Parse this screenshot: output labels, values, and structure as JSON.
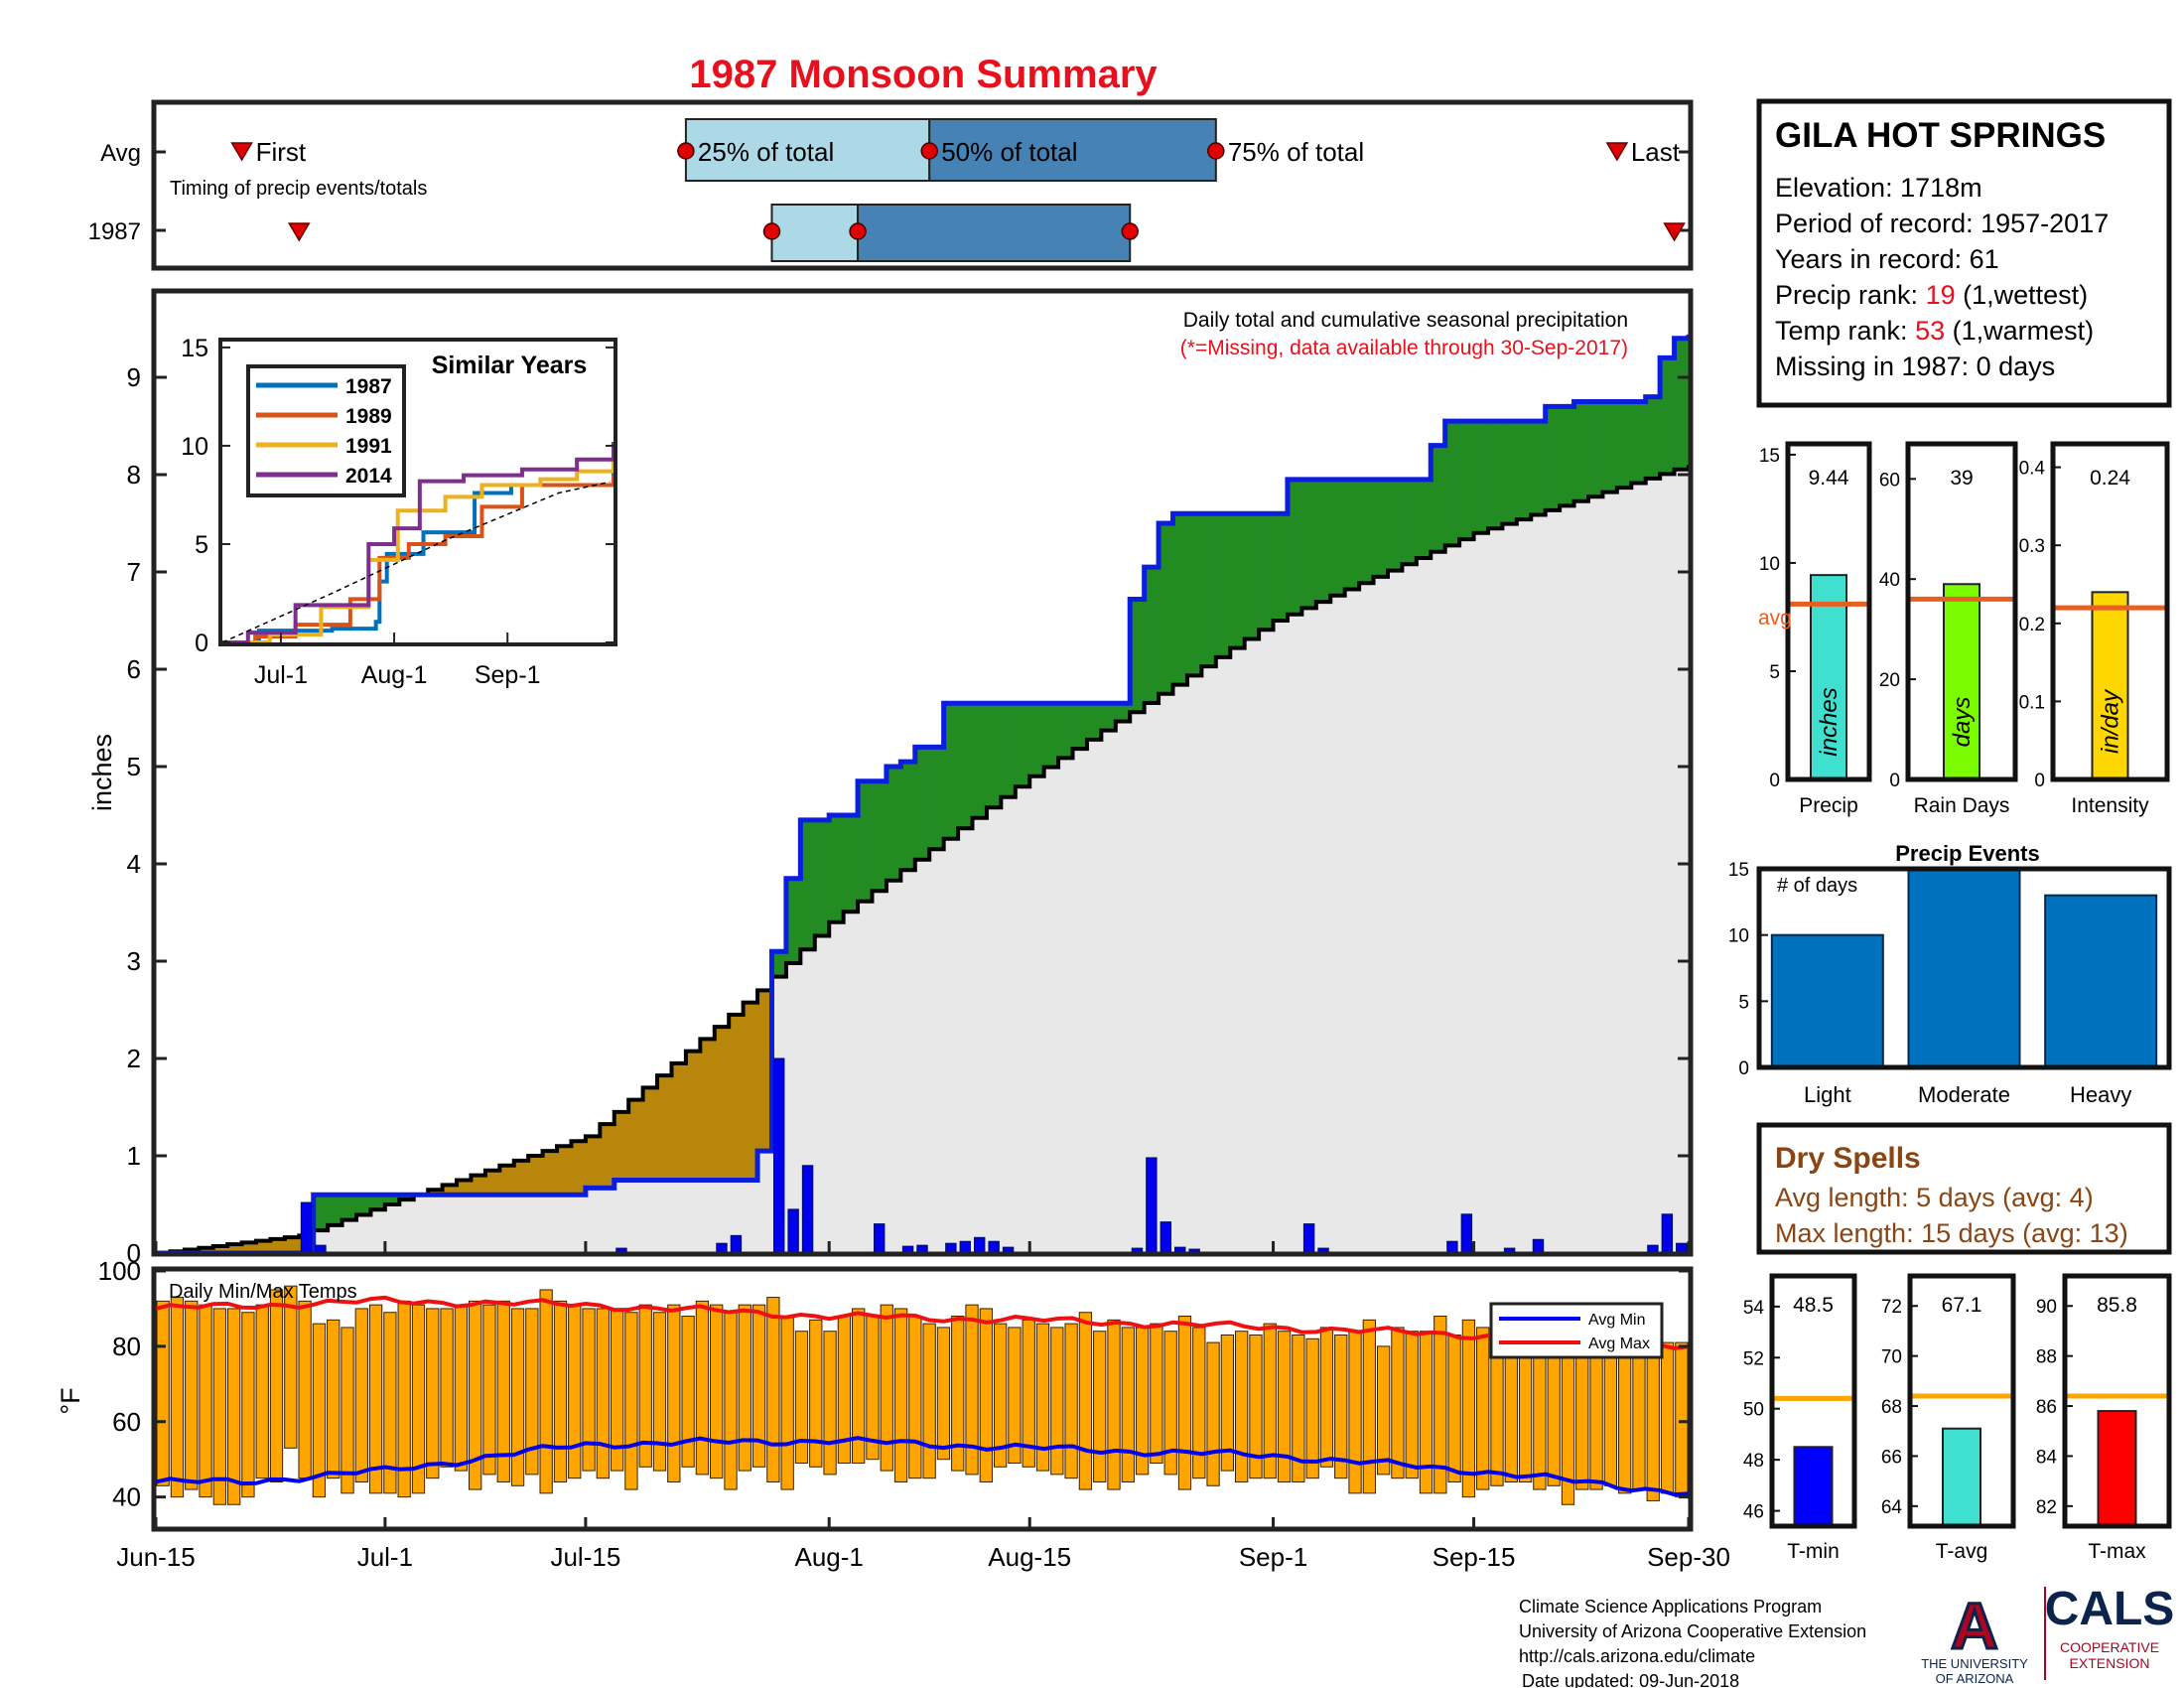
{
  "title": "1987 Monsoon Summary",
  "timing": {
    "row_avg": "Avg",
    "row_year": "1987",
    "first_label": "First",
    "last_label": "Last",
    "caption": "Timing of precip events/totals",
    "q25_label": "25% of total",
    "q50_label": "50% of total",
    "q75_label": "75% of total",
    "avg": {
      "first": "2017-06-21",
      "q25": "2017-07-22",
      "q50": "2017-08-08",
      "q75": "2017-08-28",
      "last": "2017-09-25"
    },
    "year": {
      "first": "2017-06-25",
      "q25": "2017-07-28",
      "q50": "2017-08-03",
      "q75": "2017-08-22",
      "last": "2017-09-29"
    }
  },
  "main": {
    "ylabel": "inches",
    "caption1": "Daily total and cumulative seasonal precipitation",
    "caption2": "(*=Missing, data available through 30-Sep-2017)",
    "x_ticks": [
      "Jun-15",
      "Jul-1",
      "Jul-15",
      "Aug-1",
      "Aug-15",
      "Sep-1",
      "Sep-15",
      "Sep-30"
    ],
    "y_ticks": [
      "0",
      "1",
      "2",
      "3",
      "4",
      "5",
      "6",
      "7",
      "8",
      "9"
    ]
  },
  "inset": {
    "title": "Similar Years",
    "x_ticks": [
      "Jul-1",
      "Aug-1",
      "Sep-1"
    ],
    "y_ticks": [
      "0",
      "5",
      "10",
      "15"
    ]
  },
  "temps": {
    "label": "Daily Min/Max Temps",
    "ylabel": "°F",
    "y_ticks": [
      "40",
      "60",
      "80",
      "100"
    ],
    "legend_min": "Avg Min",
    "legend_max": "Avg Max"
  },
  "station": {
    "name": "GILA HOT SPRINGS",
    "elevation": "Elevation: 1718m",
    "period": "Period of record: 1957-2017",
    "years": "Years in record: 61",
    "precip_rank_label": "Precip rank: ",
    "precip_rank_value": "19",
    "precip_rank_note": " (1,wettest)",
    "temp_rank_label": "Temp rank: ",
    "temp_rank_value": "53",
    "temp_rank_note": " (1,warmest)",
    "missing": "Missing in 1987: 0 days"
  },
  "summary_bars": {
    "avg_label": "avg",
    "precip": {
      "value_text": "9.44",
      "unit": "inches",
      "label": "Precip",
      "ticks": [
        "0",
        "5",
        "10",
        "15"
      ]
    },
    "rain_days": {
      "value_text": "39",
      "unit": "days",
      "label": "Rain Days",
      "ticks": [
        "0",
        "20",
        "40",
        "60"
      ]
    },
    "intensity": {
      "value_text": "0.24",
      "unit": "in/day",
      "label": "Intensity",
      "ticks": [
        "0",
        "0.1",
        "0.2",
        "0.3",
        "0.4"
      ]
    }
  },
  "events": {
    "title": "Precip Events",
    "ylabel": "# of days",
    "categories": [
      "Light",
      "Moderate",
      "Heavy"
    ],
    "ticks": [
      "0",
      "5",
      "10",
      "15"
    ]
  },
  "dry_spells": {
    "title": "Dry Spells",
    "avg": "Avg length: 5 days (avg: 4)",
    "max": "Max length: 15 days (avg: 13)"
  },
  "temp_bars": {
    "tmin": {
      "value_text": "48.5",
      "label": "T-min",
      "ticks": [
        "46",
        "48",
        "50",
        "52",
        "54"
      ]
    },
    "tavg": {
      "value_text": "67.1",
      "label": "T-avg",
      "ticks": [
        "64",
        "66",
        "68",
        "70",
        "72"
      ]
    },
    "tmax": {
      "value_text": "85.8",
      "label": "T-max",
      "ticks": [
        "82",
        "84",
        "86",
        "88",
        "90"
      ]
    }
  },
  "footer": {
    "line1": "Climate Science Applications Program",
    "line2": "University of Arizona Cooperative Extension",
    "line3": "http://cals.arizona.edu/climate",
    "line4": "Date updated: 09-Jun-2018"
  },
  "logos": {
    "ua_letter": "A",
    "ua_line1": "THE UNIVERSITY",
    "ua_line2": "OF ARIZONA",
    "cals": "CALS",
    "cals_line1": "COOPERATIVE",
    "cals_line2": "EXTENSION"
  },
  "colors": {
    "title": "#e8101c",
    "wet_fill": "#228b22",
    "dry_fill": "#b8860b",
    "avg_fill": "#e8e8e8",
    "daily_bar": "#0000ee",
    "q_light": "#add8e6",
    "q_dark": "#4682b4",
    "temp_bar": "#ffa500",
    "avg_line": "#e56022",
    "events_bar": "#0072bd",
    "spell_text": "#8b4513"
  },
  "chart_data": [
    {
      "name": "Cumulative seasonal precipitation",
      "type": "line",
      "units": "inches",
      "x_range": [
        "2017-06-15",
        "2017-09-30"
      ],
      "ylim": [
        0,
        9.8
      ],
      "series": [
        {
          "name": "1987",
          "role": "observed cumulative",
          "x": [
            "06-15",
            "06-25",
            "06-26",
            "07-15",
            "07-17",
            "07-27",
            "07-28",
            "07-29",
            "07-30",
            "08-01",
            "08-03",
            "08-05",
            "08-06",
            "08-07",
            "08-09",
            "08-22",
            "08-23",
            "08-24",
            "08-25",
            "09-02",
            "09-12",
            "09-13",
            "09-20",
            "09-22",
            "09-27",
            "09-28",
            "09-29",
            "09-30"
          ],
          "y": [
            0.0,
            0.0,
            0.6,
            0.67,
            0.75,
            1.05,
            3.1,
            3.85,
            4.45,
            4.5,
            4.85,
            5.0,
            5.05,
            5.2,
            5.65,
            6.72,
            7.05,
            7.5,
            7.6,
            7.95,
            8.3,
            8.55,
            8.7,
            8.75,
            8.8,
            9.2,
            9.4,
            9.44
          ]
        },
        {
          "name": "Avg",
          "role": "average cumulative",
          "x": [
            "06-15",
            "06-25",
            "07-01",
            "07-15",
            "07-27",
            "08-01",
            "08-15",
            "09-01",
            "09-15",
            "09-30"
          ],
          "y": [
            0.0,
            0.18,
            0.5,
            1.2,
            2.7,
            3.4,
            4.9,
            6.5,
            7.4,
            8.1
          ]
        }
      ]
    },
    {
      "name": "Daily precipitation",
      "type": "bar",
      "units": "inches",
      "x": [
        "06-25",
        "06-26",
        "07-17",
        "07-24",
        "07-25",
        "07-28",
        "07-29",
        "07-30",
        "08-04",
        "08-06",
        "08-07",
        "08-09",
        "08-10",
        "08-11",
        "08-12",
        "08-13",
        "08-22",
        "08-23",
        "08-24",
        "08-25",
        "08-26",
        "09-03",
        "09-04",
        "09-13",
        "09-14",
        "09-17",
        "09-19",
        "09-27",
        "09-28",
        "09-29"
      ],
      "values": [
        0.52,
        0.08,
        0.05,
        0.1,
        0.18,
        2.0,
        0.45,
        0.9,
        0.3,
        0.07,
        0.08,
        0.1,
        0.12,
        0.16,
        0.12,
        0.06,
        0.05,
        0.98,
        0.32,
        0.06,
        0.04,
        0.3,
        0.05,
        0.12,
        0.4,
        0.05,
        0.14,
        0.08,
        0.4,
        0.1
      ]
    },
    {
      "name": "Similar Years",
      "type": "line",
      "units": "inches",
      "ylim": [
        0,
        15
      ],
      "x_ticks": [
        "Jul-1",
        "Aug-1",
        "Sep-1"
      ],
      "series": [
        {
          "name": "1987",
          "x": [
            "06-15",
            "06-25",
            "07-15",
            "07-27",
            "07-28",
            "07-30",
            "08-09",
            "08-23",
            "09-02",
            "09-30"
          ],
          "y": [
            0,
            0.6,
            0.7,
            1.05,
            3.1,
            4.5,
            5.6,
            7.6,
            8.0,
            9.4
          ]
        },
        {
          "name": "1989",
          "x": [
            "06-15",
            "06-24",
            "07-05",
            "07-20",
            "07-28",
            "08-05",
            "08-15",
            "08-25",
            "09-05",
            "09-30"
          ],
          "y": [
            0,
            0.3,
            0.9,
            2.2,
            4.3,
            5.0,
            5.4,
            6.9,
            8.0,
            8.5
          ]
        },
        {
          "name": "1991",
          "x": [
            "06-15",
            "06-28",
            "07-12",
            "07-25",
            "08-02",
            "08-15",
            "08-25",
            "09-10",
            "09-20",
            "09-30"
          ],
          "y": [
            0,
            0.4,
            1.8,
            4.2,
            6.7,
            7.4,
            8.0,
            8.3,
            8.7,
            9.5
          ]
        },
        {
          "name": "2014",
          "x": [
            "06-15",
            "06-22",
            "07-05",
            "07-25",
            "08-01",
            "08-08",
            "08-20",
            "09-05",
            "09-20",
            "09-30"
          ],
          "y": [
            0,
            0.5,
            1.9,
            5.0,
            5.8,
            8.2,
            8.5,
            8.8,
            9.3,
            10.2
          ]
        },
        {
          "name": "avg",
          "x": [
            "06-15",
            "07-15",
            "08-15",
            "09-15",
            "09-30"
          ],
          "y": [
            0,
            2.5,
            5.2,
            7.6,
            8.2
          ]
        }
      ]
    },
    {
      "name": "Daily Min/Max Temps",
      "type": "bar",
      "units": "°F",
      "ylim": [
        32,
        100
      ],
      "x_range": [
        "2017-06-15",
        "2017-09-30"
      ],
      "series": [
        {
          "name": "Tmax",
          "values": [
            92,
            93,
            92,
            91,
            90,
            90,
            89,
            91,
            95,
            96,
            92,
            86,
            87,
            85,
            90,
            91,
            89,
            92,
            91,
            90,
            90,
            91,
            92,
            91,
            92,
            90,
            90,
            95,
            92,
            91,
            90,
            90,
            90,
            89,
            91,
            89,
            91,
            88,
            92,
            91,
            89,
            91,
            91,
            93,
            88,
            84,
            87,
            84,
            88,
            90,
            88,
            91,
            90,
            88,
            86,
            85,
            88,
            91,
            90,
            86,
            85,
            87,
            86,
            85,
            86,
            89,
            84,
            87,
            85,
            85,
            86,
            84,
            88,
            85,
            81,
            83,
            84,
            83,
            86,
            84,
            83,
            82,
            85,
            83,
            84,
            87,
            80,
            85,
            84,
            84,
            88,
            83,
            87,
            85,
            83,
            84,
            83,
            85,
            83,
            81,
            80,
            79,
            81,
            84,
            80,
            82,
            81,
            81
          ]
        },
        {
          "name": "Tmin",
          "values": [
            43,
            40,
            42,
            40,
            38,
            38,
            40,
            45,
            44,
            53,
            45,
            40,
            45,
            41,
            44,
            41,
            41,
            40,
            41,
            45,
            48,
            47,
            42,
            46,
            44,
            43,
            46,
            41,
            44,
            45,
            47,
            45,
            47,
            42,
            48,
            47,
            44,
            48,
            46,
            45,
            42,
            47,
            48,
            44,
            42,
            49,
            48,
            46,
            49,
            49,
            50,
            47,
            44,
            45,
            45,
            50,
            47,
            46,
            44,
            48,
            49,
            48,
            47,
            46,
            45,
            42,
            44,
            42,
            44,
            46,
            49,
            46,
            42,
            45,
            43,
            47,
            44,
            45,
            45,
            44,
            44,
            45,
            48,
            45,
            41,
            41,
            46,
            45,
            45,
            41,
            41,
            44,
            40,
            42,
            43,
            44,
            44,
            42,
            43,
            38,
            42,
            42,
            43,
            41,
            42,
            39,
            41,
            40
          ]
        },
        {
          "name": "Avg Max",
          "x": [
            "06-15",
            "07-01",
            "07-15",
            "08-01",
            "08-15",
            "09-01",
            "09-15",
            "09-30"
          ],
          "y": [
            90,
            92,
            91,
            88,
            87,
            85,
            83,
            80
          ]
        },
        {
          "name": "Avg Min",
          "x": [
            "06-15",
            "06-21",
            "07-01",
            "07-15",
            "08-01",
            "08-15",
            "09-01",
            "09-15",
            "09-30"
          ],
          "y": [
            44,
            44,
            47,
            54,
            55,
            53,
            51,
            47,
            41
          ]
        }
      ]
    },
    {
      "name": "Seasonal summary",
      "type": "bar",
      "categories": [
        "Precip",
        "Rain Days",
        "Intensity"
      ],
      "values": [
        9.44,
        39,
        0.24
      ],
      "averages": [
        8.1,
        36,
        0.22
      ]
    },
    {
      "name": "Precip Events",
      "type": "bar",
      "ylabel": "# of days",
      "categories": [
        "Light",
        "Moderate",
        "Heavy"
      ],
      "values": [
        10,
        15,
        13
      ],
      "ylim": [
        0,
        15
      ]
    },
    {
      "name": "Temperature summary",
      "type": "bar",
      "categories": [
        "T-min",
        "T-avg",
        "T-max"
      ],
      "values": [
        48.5,
        67.1,
        85.8
      ],
      "averages": [
        50.4,
        68.4,
        86.4
      ]
    }
  ]
}
